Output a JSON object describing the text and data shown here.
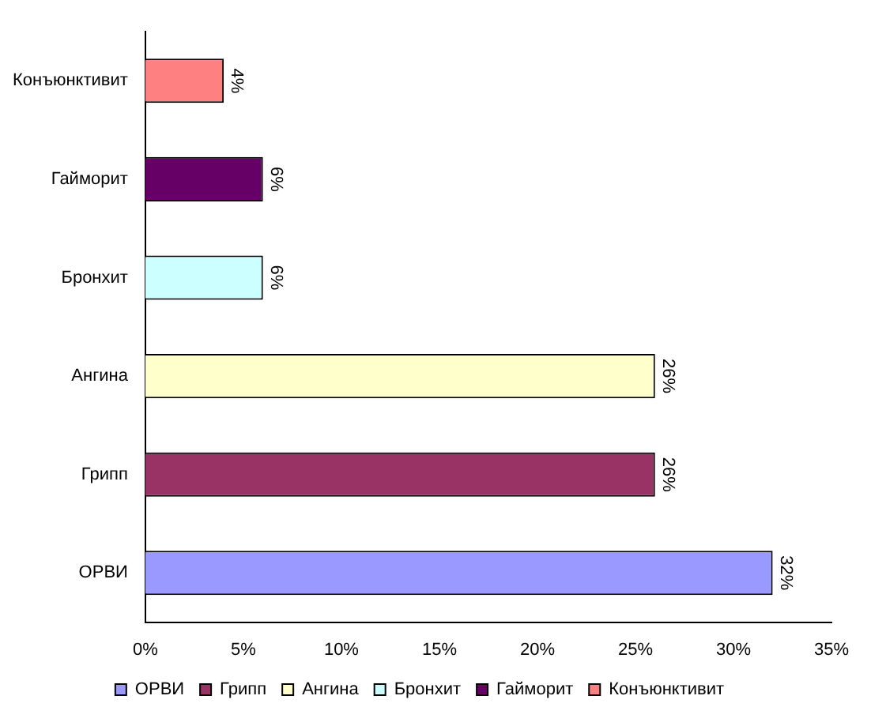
{
  "chart_data": {
    "type": "bar",
    "orientation": "horizontal",
    "categories": [
      "Конъюнктивит",
      "Гайморит",
      "Бронхит",
      "Ангина",
      "Грипп",
      "ОРВИ"
    ],
    "series": [
      {
        "name": "ОРВИ",
        "color": "#9999ff",
        "values": [
          null,
          null,
          null,
          null,
          null,
          32
        ],
        "value_labels": [
          null,
          null,
          null,
          null,
          null,
          "32%"
        ]
      },
      {
        "name": "Грипп",
        "color": "#993366",
        "values": [
          null,
          null,
          null,
          null,
          26,
          null
        ],
        "value_labels": [
          null,
          null,
          null,
          null,
          "26%",
          null
        ]
      },
      {
        "name": "Ангина",
        "color": "#ffffcc",
        "values": [
          null,
          null,
          null,
          26,
          null,
          null
        ],
        "value_labels": [
          null,
          null,
          null,
          "26%",
          null,
          null
        ]
      },
      {
        "name": "Бронхит",
        "color": "#ccffff",
        "values": [
          null,
          null,
          6,
          null,
          null,
          null
        ],
        "value_labels": [
          null,
          null,
          "6%",
          null,
          null,
          null
        ]
      },
      {
        "name": "Гайморит",
        "color": "#660066",
        "values": [
          null,
          6,
          null,
          null,
          null,
          null
        ],
        "value_labels": [
          null,
          "6%",
          null,
          null,
          null,
          null
        ]
      },
      {
        "name": "Конъюнктивит",
        "color": "#ff8080",
        "values": [
          4,
          null,
          null,
          null,
          null,
          null
        ],
        "value_labels": [
          "4%",
          null,
          null,
          null,
          null,
          null
        ]
      }
    ],
    "xlim": [
      0,
      35
    ],
    "xticks": [
      {
        "value": 0,
        "label": "0%"
      },
      {
        "value": 5,
        "label": "5%"
      },
      {
        "value": 10,
        "label": "10%"
      },
      {
        "value": 15,
        "label": "15%"
      },
      {
        "value": 20,
        "label": "20%"
      },
      {
        "value": 25,
        "label": "25%"
      },
      {
        "value": 30,
        "label": "30%"
      },
      {
        "value": 35,
        "label": "35%"
      }
    ],
    "grid": false,
    "legend": "bottom"
  }
}
